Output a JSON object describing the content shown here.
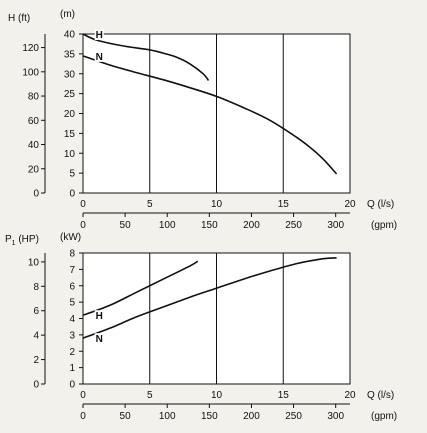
{
  "colors": {
    "background": "#f2f1ec",
    "plot_background": "#ffffff",
    "grid": "#111111",
    "curve": "#111111"
  },
  "chart_data": [
    {
      "type": "line",
      "id": "head",
      "x_primary": {
        "unit_label": "Q (l/s)",
        "ticks": [
          0,
          5,
          10,
          15,
          20
        ],
        "range": [
          0,
          20
        ]
      },
      "x_secondary": {
        "unit_label": "(gpm)",
        "ticks": [
          0,
          50,
          100,
          150,
          200,
          250,
          300
        ],
        "factor": 15.85
      },
      "y_left": {
        "unit_label": "H (ft)",
        "ticks": [
          0,
          20,
          40,
          60,
          80,
          100,
          120
        ]
      },
      "y_right": {
        "unit_label": "(m)",
        "ticks": [
          0,
          5,
          10,
          15,
          20,
          25,
          30,
          35,
          40
        ],
        "range": [
          0,
          40
        ]
      },
      "grid": "vertical-every-5",
      "series": [
        {
          "name": "H",
          "points": [
            [
              0,
              40
            ],
            [
              1,
              38.5
            ],
            [
              3,
              37
            ],
            [
              5,
              36
            ],
            [
              6,
              35.2
            ],
            [
              7,
              34.2
            ],
            [
              8,
              32.5
            ],
            [
              9,
              30
            ],
            [
              9.4,
              28.3
            ]
          ]
        },
        {
          "name": "N",
          "points": [
            [
              0,
              34.5
            ],
            [
              2,
              32.2
            ],
            [
              4,
              30.3
            ],
            [
              6,
              28.5
            ],
            [
              8,
              26.5
            ],
            [
              10,
              24.3
            ],
            [
              12,
              21.5
            ],
            [
              14,
              18.3
            ],
            [
              16,
              14
            ],
            [
              17,
              11.5
            ],
            [
              18,
              8.5
            ],
            [
              19,
              4.8
            ]
          ]
        }
      ]
    },
    {
      "type": "line",
      "id": "power",
      "x_primary": {
        "unit_label": "Q (l/s)",
        "ticks": [
          0,
          5,
          10,
          15,
          20
        ],
        "range": [
          0,
          20
        ]
      },
      "x_secondary": {
        "unit_label": "(gpm)",
        "ticks": [
          0,
          50,
          100,
          150,
          200,
          250,
          300
        ],
        "factor": 15.85
      },
      "y_left": {
        "unit_label_main": "P",
        "unit_label_sub": "1",
        "unit_label_rest": " (HP)",
        "ticks": [
          0,
          2,
          4,
          6,
          8,
          10
        ]
      },
      "y_right": {
        "unit_label": "(kW)",
        "ticks": [
          0,
          1,
          2,
          3,
          4,
          5,
          6,
          7,
          8
        ],
        "range": [
          0,
          8
        ]
      },
      "grid": "vertical-every-5",
      "series": [
        {
          "name": "H",
          "points": [
            [
              0,
              4.2
            ],
            [
              2,
              4.8
            ],
            [
              4,
              5.6
            ],
            [
              6,
              6.4
            ],
            [
              8,
              7.2
            ],
            [
              8.6,
              7.5
            ]
          ]
        },
        {
          "name": "N",
          "points": [
            [
              0,
              2.8
            ],
            [
              2,
              3.4
            ],
            [
              4,
              4.1
            ],
            [
              6,
              4.7
            ],
            [
              8,
              5.3
            ],
            [
              10,
              5.85
            ],
            [
              12,
              6.4
            ],
            [
              14,
              6.9
            ],
            [
              16,
              7.35
            ],
            [
              18,
              7.65
            ],
            [
              19,
              7.7
            ]
          ]
        }
      ]
    }
  ]
}
